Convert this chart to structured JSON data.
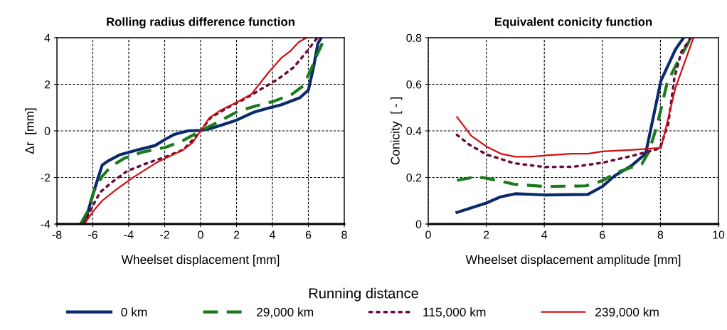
{
  "chart_data": [
    {
      "type": "line",
      "title": "Rolling radius difference function",
      "xlabel": "Wheelset displacement [mm]",
      "ylabel": "Δr  [mm]",
      "xlim": [
        -8,
        8
      ],
      "xticks": [
        -8,
        -6,
        -4,
        -2,
        0,
        2,
        4,
        6,
        8
      ],
      "ylim": [
        -4,
        4
      ],
      "yticks": [
        -4,
        -2,
        0,
        2,
        4
      ],
      "grid": true,
      "legend": "bottom",
      "legend_title": "Running distance",
      "marker": "none",
      "series": [
        {
          "name": "0 km",
          "color": "#0a2a6e",
          "line_style": "solid",
          "x": [
            -6.55,
            -6.3,
            -6.0,
            -5.48,
            -5.1,
            -4.48,
            -3.47,
            -2.53,
            -1.96,
            -1.46,
            -0.7,
            0,
            0.55,
            1.18,
            2.0,
            3.0,
            3.7,
            4.5,
            5.52,
            6.0,
            6.28,
            6.53,
            6.72
          ],
          "values": [
            -4,
            -3.55,
            -2.74,
            -1.47,
            -1.27,
            -1.02,
            -0.81,
            -0.63,
            -0.36,
            -0.15,
            0,
            0.02,
            0.1,
            0.25,
            0.46,
            0.81,
            0.96,
            1.12,
            1.42,
            1.75,
            2.7,
            3.75,
            4
          ]
        },
        {
          "name": "29,000 km",
          "color": "#1a7a1a",
          "line_style": "dashed",
          "x": [
            -6.68,
            -6.3,
            -5.92,
            -5.48,
            -4.98,
            -4.23,
            -3.22,
            -1.96,
            -0.96,
            0,
            0.93,
            2.0,
            3.07,
            4.08,
            5.08,
            5.71,
            6.15,
            6.53,
            6.78
          ],
          "values": [
            -4,
            -3.47,
            -2.56,
            -1.95,
            -1.52,
            -1.17,
            -0.91,
            -0.71,
            -0.41,
            0,
            0.36,
            0.81,
            1.07,
            1.27,
            1.57,
            1.93,
            2.64,
            3.35,
            3.76
          ]
        },
        {
          "name": "115,000 km",
          "color": "#6b0a3a",
          "line_style": "dotted",
          "x": [
            -6.5,
            -6.11,
            -5.6,
            -4.98,
            -4.1,
            -3.1,
            -1.96,
            -0.96,
            -0.33,
            0,
            0.55,
            1.56,
            2.57,
            3.45,
            4.33,
            5.2,
            5.96,
            6.4,
            6.53
          ],
          "values": [
            -4,
            -3.37,
            -2.64,
            -2.23,
            -1.73,
            -1.42,
            -1.12,
            -0.81,
            -0.3,
            0,
            0.56,
            1.02,
            1.42,
            1.83,
            2.23,
            2.74,
            3.45,
            3.9,
            4
          ]
        },
        {
          "name": "239,000 km",
          "color": "#d01010",
          "line_style": "solid",
          "x": [
            -6.47,
            -6.0,
            -5.48,
            -4.73,
            -3.72,
            -2.47,
            -0.96,
            -0.45,
            0,
            0.49,
            1.06,
            2.0,
            2.82,
            3.82,
            4.52,
            4.96,
            5.46,
            5.9
          ],
          "values": [
            -4,
            -3.47,
            -3.0,
            -2.54,
            -1.98,
            -1.37,
            -0.81,
            -0.51,
            0,
            0.56,
            0.86,
            1.22,
            1.57,
            2.54,
            3.15,
            3.4,
            3.81,
            4
          ]
        }
      ]
    },
    {
      "type": "line",
      "title": "Equivalent conicity function",
      "xlabel": "Wheelset displacement amplitude [mm]",
      "ylabel": "Conicity  [ - ]",
      "xlim": [
        0,
        10
      ],
      "xticks": [
        0,
        2,
        4,
        6,
        8,
        10
      ],
      "ylim": [
        0,
        0.8
      ],
      "yticks": [
        0,
        0.2,
        0.4,
        0.6,
        0.8
      ],
      "grid": true,
      "marker": "none",
      "series": [
        {
          "color": "#0a2a6e",
          "line_style": "solid",
          "x": [
            0.99,
            2.0,
            2.5,
            3.0,
            4.0,
            5.5,
            6.0,
            6.42,
            7.0,
            7.49,
            8.02,
            8.52,
            8.8
          ],
          "values": [
            0.05,
            0.09,
            0.117,
            0.13,
            0.125,
            0.127,
            0.161,
            0.207,
            0.25,
            0.302,
            0.616,
            0.75,
            0.8
          ]
        },
        {
          "color": "#1a7a1a",
          "line_style": "dashed",
          "x": [
            0.99,
            1.65,
            2.0,
            2.96,
            4.03,
            5.43,
            6.0,
            6.5,
            7.36,
            7.6,
            7.9,
            8.23,
            8.56,
            8.97,
            9.05
          ],
          "values": [
            0.188,
            0.203,
            0.197,
            0.171,
            0.161,
            0.164,
            0.186,
            0.222,
            0.258,
            0.309,
            0.43,
            0.606,
            0.688,
            0.78,
            0.8
          ]
        },
        {
          "color": "#6b0a3a",
          "line_style": "dotted",
          "x": [
            0.99,
            1.4,
            2.0,
            2.96,
            4.0,
            5.0,
            6.0,
            7.07,
            7.98,
            8.27,
            8.48,
            8.72,
            9.05
          ],
          "values": [
            0.383,
            0.342,
            0.299,
            0.261,
            0.245,
            0.246,
            0.263,
            0.294,
            0.325,
            0.43,
            0.626,
            0.739,
            0.8
          ]
        },
        {
          "color": "#d01010",
          "line_style": "solid",
          "x": [
            0.99,
            1.48,
            2.0,
            2.5,
            3.0,
            3.54,
            4.0,
            4.94,
            5.51,
            6.0,
            7.07,
            8.02,
            8.52,
            9.14
          ],
          "values": [
            0.46,
            0.379,
            0.333,
            0.302,
            0.289,
            0.289,
            0.294,
            0.302,
            0.302,
            0.312,
            0.319,
            0.327,
            0.585,
            0.8
          ]
        }
      ]
    }
  ]
}
